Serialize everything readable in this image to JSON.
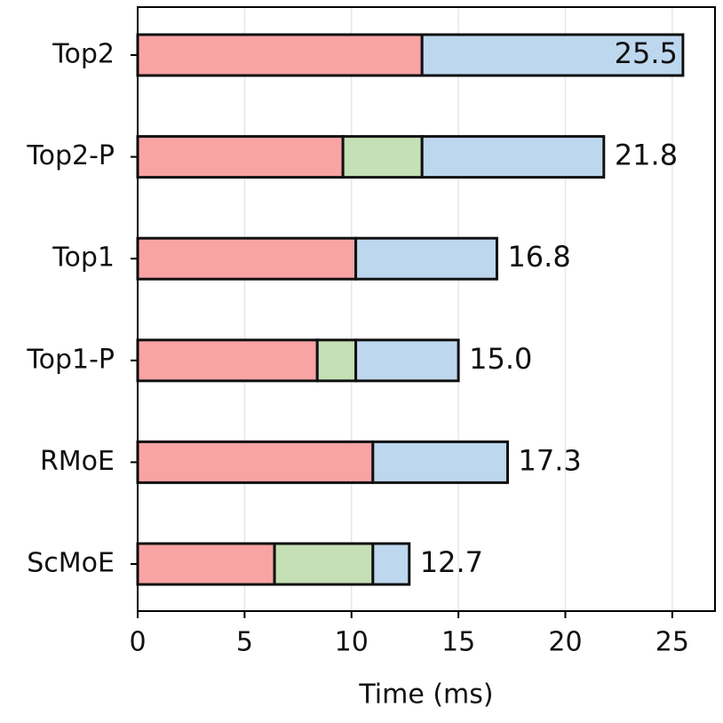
{
  "chart_data": {
    "type": "stacked-barh",
    "xlabel": "Time (ms)",
    "categories": [
      "Top2",
      "Top2-P",
      "Top1",
      "Top1-P",
      "RMoE",
      "ScMoE"
    ],
    "series": [
      {
        "color": "#f9a3a4",
        "values": [
          13.3,
          9.6,
          10.2,
          8.4,
          11.0,
          6.4
        ]
      },
      {
        "color": "#c5e0b4",
        "values": [
          null,
          3.7,
          null,
          1.8,
          null,
          4.6
        ]
      },
      {
        "color": "#bdd7ee",
        "values": [
          12.2,
          8.5,
          6.6,
          4.8,
          6.3,
          1.7
        ]
      }
    ],
    "totals": [
      25.5,
      21.8,
      16.8,
      15.0,
      17.3,
      12.7
    ],
    "total_labels": [
      "25.5",
      "21.8",
      "16.8",
      "15.0",
      "17.3",
      "12.7"
    ],
    "xlim": [
      0,
      27
    ],
    "xticks": [
      0,
      5,
      10,
      15,
      20,
      25
    ],
    "grid": true
  }
}
